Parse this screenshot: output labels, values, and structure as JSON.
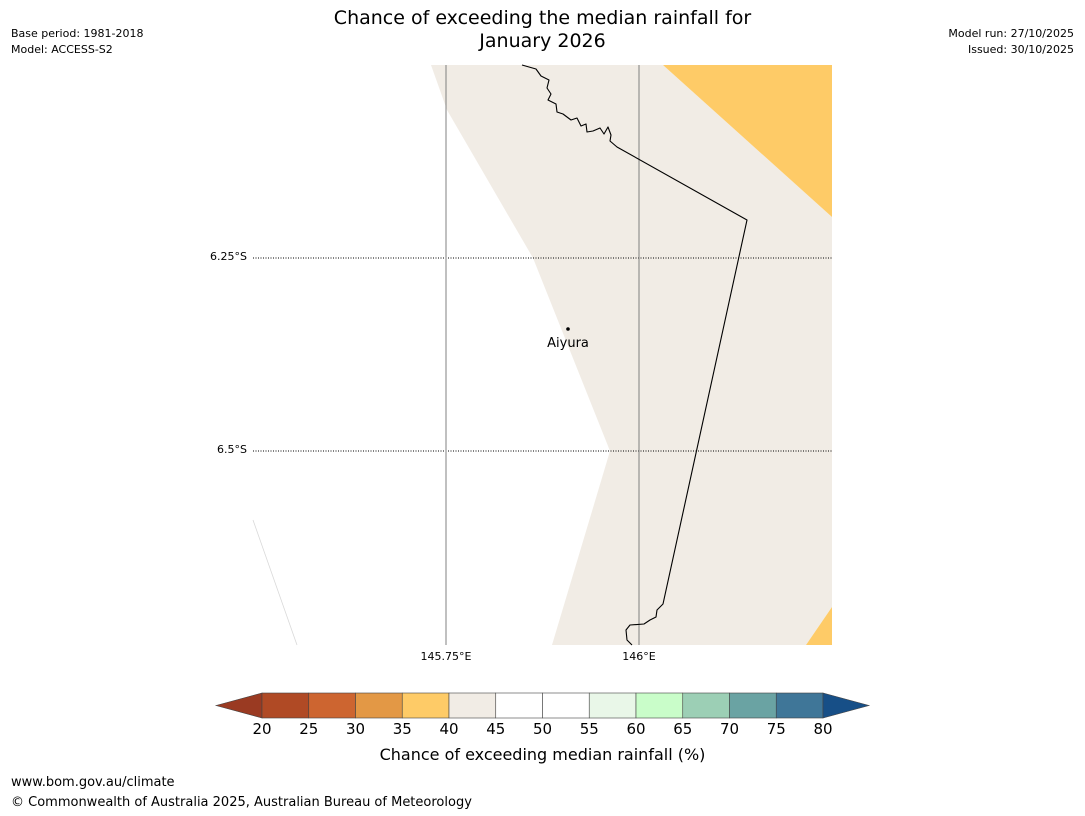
{
  "title": {
    "line1": "Chance of exceeding the median rainfall for",
    "line2": "January 2026"
  },
  "meta_left": {
    "base_period": "Base period: 1981-2018",
    "model": "Model: ACCESS-S2"
  },
  "meta_right": {
    "model_run": "Model run: 27/10/2025",
    "issued": "Issued: 30/10/2025"
  },
  "map": {
    "lat_labels": [
      "6.25°S",
      "6.5°S"
    ],
    "lon_labels": [
      "145.75°E",
      "146°E"
    ],
    "place": {
      "name": "Aiyura"
    },
    "colors": {
      "band_35_40": "#fecb67",
      "band_40_45": "#f1ece5",
      "band_45_55": "#ffffff",
      "coastline": "#000000",
      "gridline": "#808080"
    }
  },
  "colorbar": {
    "label": "Chance of exceeding median rainfall (%)",
    "ticks": [
      "20",
      "25",
      "30",
      "35",
      "40",
      "45",
      "50",
      "55",
      "60",
      "65",
      "70",
      "75",
      "80"
    ],
    "under_color": "#9a3a22",
    "over_color": "#174f87",
    "bins": [
      {
        "range": "20-25",
        "color": "#b04a25"
      },
      {
        "range": "25-30",
        "color": "#cd6530"
      },
      {
        "range": "30-35",
        "color": "#e39845"
      },
      {
        "range": "35-40",
        "color": "#fecb67"
      },
      {
        "range": "40-45",
        "color": "#f1ece5"
      },
      {
        "range": "45-50",
        "color": "#ffffff"
      },
      {
        "range": "50-55",
        "color": "#ffffff"
      },
      {
        "range": "55-60",
        "color": "#e9f7e8"
      },
      {
        "range": "60-65",
        "color": "#c9fdc9"
      },
      {
        "range": "65-70",
        "color": "#9ccfb5"
      },
      {
        "range": "70-75",
        "color": "#6aa3a3"
      },
      {
        "range": "75-80",
        "color": "#3f7698"
      }
    ]
  },
  "footer": {
    "url": "www.bom.gov.au/climate",
    "copyright": "© Commonwealth of Australia 2025, Australian Bureau of Meteorology"
  }
}
